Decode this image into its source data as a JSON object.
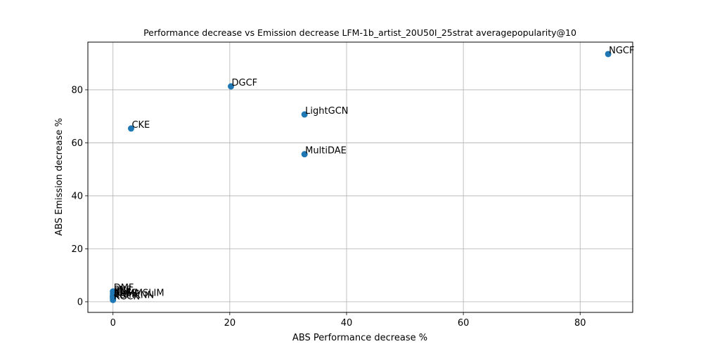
{
  "chart_data": {
    "type": "scatter",
    "title": "Performance decrease vs Emission decrease LFM-1b_artist_20U50I_25strat averagepopularity@10",
    "xlabel": "ABS Performance decrease %",
    "ylabel": "ABS Emission decrease %",
    "xlim": [
      -4.3,
      89
    ],
    "ylim": [
      -4,
      98
    ],
    "xticks": [
      0,
      20,
      40,
      60,
      80
    ],
    "yticks": [
      0,
      20,
      40,
      60,
      80
    ],
    "grid": true,
    "legend": "none",
    "marker_color": "#1f77b4",
    "points": [
      {
        "label": "NGCF",
        "x": 84.8,
        "y": 93.5
      },
      {
        "label": "DGCF",
        "x": 20.2,
        "y": 81.3
      },
      {
        "label": "LightGCN",
        "x": 32.8,
        "y": 70.7
      },
      {
        "label": "CKE",
        "x": 3.1,
        "y": 65.4
      },
      {
        "label": "MultiDAE",
        "x": 32.8,
        "y": 55.7
      },
      {
        "label": "DMF",
        "x": 0.0,
        "y": 3.9
      },
      {
        "label": "PNE",
        "x": 0.0,
        "y": 3.2
      },
      {
        "label": "BPR",
        "x": 0.0,
        "y": 2.5
      },
      {
        "label": "EASE",
        "x": 0.0,
        "y": 2.0
      },
      {
        "label": "ENMF",
        "x": 0.0,
        "y": 1.6
      },
      {
        "label": "ADMMSLIM",
        "x": 0.0,
        "y": 1.9
      },
      {
        "label": "NLS",
        "x": 0.0,
        "y": 2.1
      },
      {
        "label": "ItemKNN",
        "x": 0.0,
        "y": 1.2
      },
      {
        "label": "KGCN",
        "x": 0.0,
        "y": 0.7
      }
    ]
  }
}
